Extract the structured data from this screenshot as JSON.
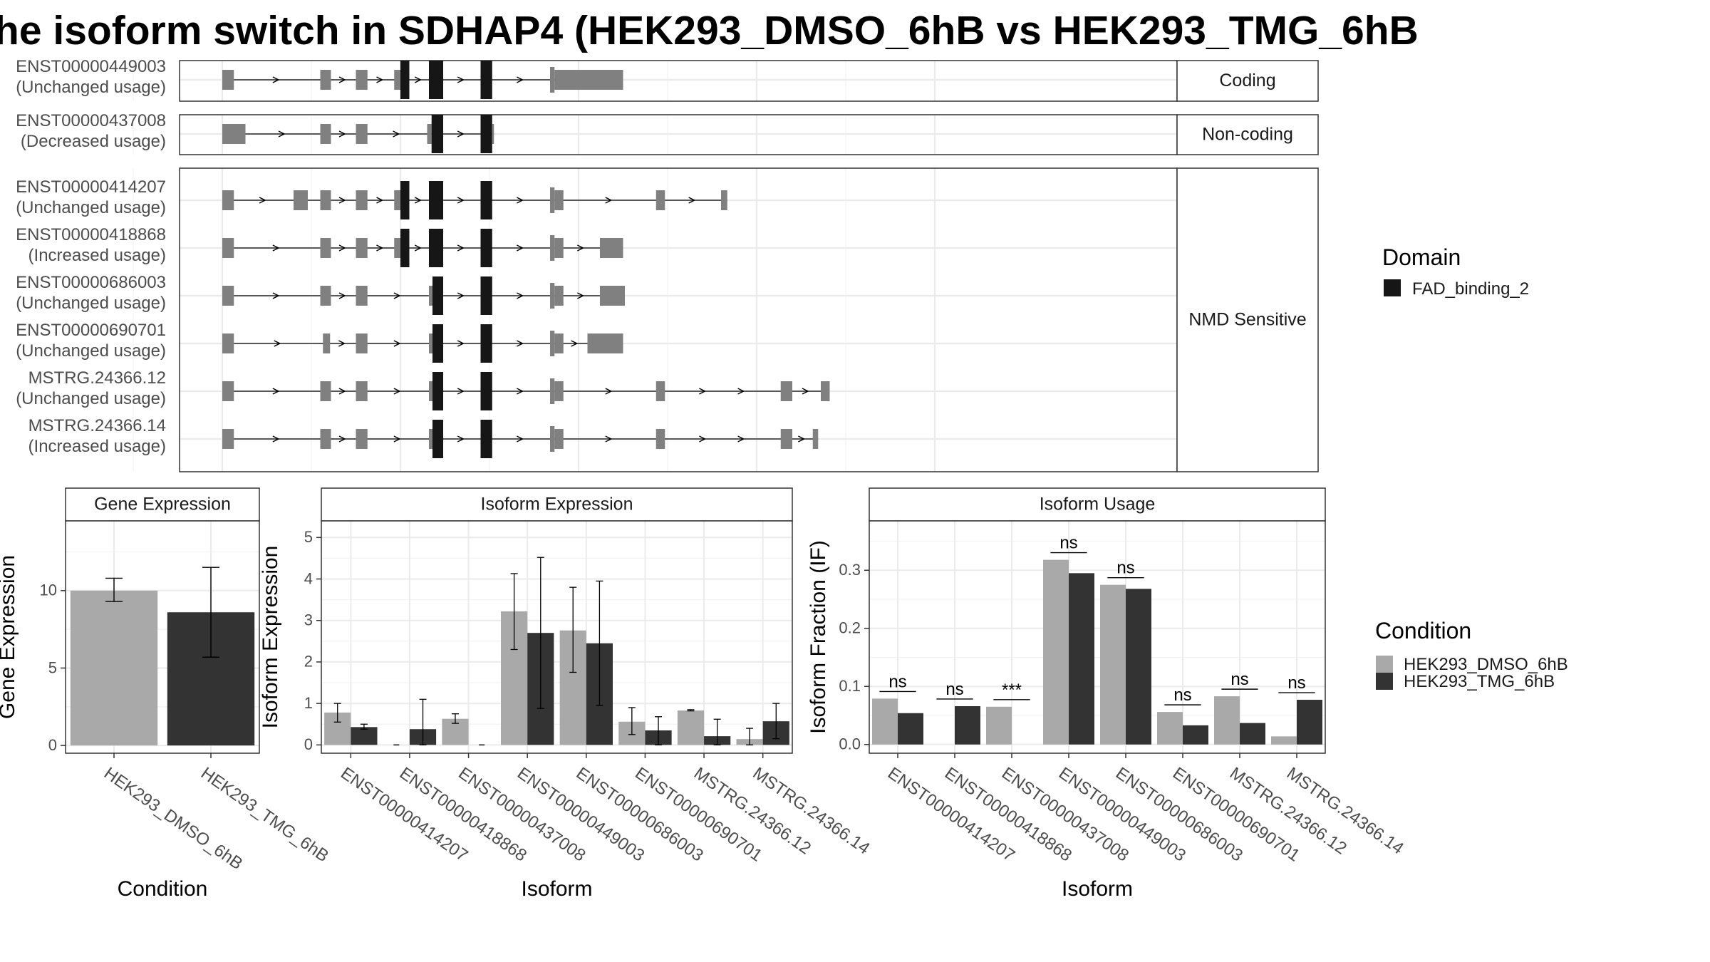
{
  "title": "he isoform switch in SDHAP4 (HEK293_DMSO_6hB vs HEK293_TMG_6hB",
  "colors": {
    "dmso": "#a9a9a9",
    "tmg": "#333333",
    "exon": "#808080",
    "domain": "#161616",
    "grid": "#ebebeb",
    "strip_bg": "#ffffff"
  },
  "structure": {
    "groups": [
      "Coding",
      "Non-coding",
      "NMD Sensitive"
    ],
    "transcripts": [
      {
        "id": "ENST00000449003",
        "label": "(Unchanged usage)",
        "group": "Coding"
      },
      {
        "id": "ENST00000437008",
        "label": "(Decreased usage)",
        "group": "Non-coding"
      },
      {
        "id": "ENST00000414207",
        "label": "(Unchanged usage)",
        "group": "NMD Sensitive"
      },
      {
        "id": "ENST00000418868",
        "label": "(Increased usage)",
        "group": "NMD Sensitive"
      },
      {
        "id": "ENST00000686003",
        "label": "(Unchanged usage)",
        "group": "NMD Sensitive"
      },
      {
        "id": "ENST00000690701",
        "label": "(Unchanged usage)",
        "group": "NMD Sensitive"
      },
      {
        "id": "MSTRG.24366.12",
        "label": "(Unchanged usage)",
        "group": "NMD Sensitive"
      },
      {
        "id": "MSTRG.24366.14",
        "label": "(Increased usage)",
        "group": "NMD Sensitive"
      }
    ],
    "domain_legend": {
      "title": "Domain",
      "items": [
        "FAD_binding_2"
      ]
    }
  },
  "condition_legend": {
    "title": "Condition",
    "items": [
      "HEK293_DMSO_6hB",
      "HEK293_TMG_6hB"
    ]
  },
  "chart_data": [
    {
      "type": "bar",
      "title": "Gene Expression",
      "xlabel": "Condition",
      "ylabel": "Gene Expression",
      "ylim": [
        -0.5,
        14.5
      ],
      "yticks": [
        0,
        5,
        10
      ],
      "categories": [
        "HEK293_DMSO_6hB",
        "HEK293_TMG_6hB"
      ],
      "values": [
        10.0,
        8.6
      ],
      "errors": [
        [
          9.3,
          10.8
        ],
        [
          5.7,
          11.5
        ]
      ]
    },
    {
      "type": "bar",
      "title": "Isoform Expression",
      "xlabel": "Isoform",
      "ylabel": "Isoform Expression",
      "ylim": [
        -0.2,
        5.4
      ],
      "yticks": [
        0,
        1,
        2,
        3,
        4,
        5
      ],
      "categories": [
        "ENST00000414207",
        "ENST00000418868",
        "ENST00000437008",
        "ENST00000449003",
        "ENST00000686003",
        "ENST00000690701",
        "MSTRG.24366.12",
        "MSTRG.24366.14"
      ],
      "series": [
        {
          "name": "HEK293_DMSO_6hB",
          "values": [
            0.78,
            0.0,
            0.63,
            3.22,
            2.76,
            0.56,
            0.83,
            0.14
          ],
          "errors": [
            [
              0.55,
              1.0
            ],
            [
              0,
              0
            ],
            [
              0.52,
              0.75
            ],
            [
              2.3,
              4.13
            ],
            [
              1.75,
              3.8
            ],
            [
              0.25,
              0.9
            ],
            [
              0.82,
              0.85
            ],
            [
              0.0,
              0.4
            ]
          ]
        },
        {
          "name": "HEK293_TMG_6hB",
          "values": [
            0.43,
            0.38,
            0.0,
            2.7,
            2.45,
            0.35,
            0.21,
            0.57
          ],
          "errors": [
            [
              0.38,
              0.5
            ],
            [
              0.0,
              1.1
            ],
            [
              0,
              0
            ],
            [
              0.88,
              4.52
            ],
            [
              0.95,
              3.95
            ],
            [
              0.0,
              0.68
            ],
            [
              0.0,
              0.62
            ],
            [
              0.15,
              1.0
            ]
          ]
        }
      ]
    },
    {
      "type": "bar",
      "title": "Isoform Usage",
      "xlabel": "Isoform",
      "ylabel": "Isoform Fraction (IF)",
      "ylim": [
        -0.015,
        0.385
      ],
      "yticks": [
        0.0,
        0.1,
        0.2,
        0.3
      ],
      "ytick_labels": [
        "0.0",
        "0.1",
        "0.2",
        "0.3"
      ],
      "categories": [
        "ENST00000414207",
        "ENST00000418868",
        "ENST00000437008",
        "ENST00000449003",
        "ENST00000686003",
        "ENST00000690701",
        "MSTRG.24366.12",
        "MSTRG.24366.14"
      ],
      "series": [
        {
          "name": "HEK293_DMSO_6hB",
          "values": [
            0.079,
            0.0,
            0.065,
            0.318,
            0.275,
            0.056,
            0.083,
            0.014
          ]
        },
        {
          "name": "HEK293_TMG_6hB",
          "values": [
            0.054,
            0.066,
            0.0,
            0.295,
            0.268,
            0.033,
            0.037,
            0.077
          ]
        }
      ],
      "significance": [
        "ns",
        "ns",
        "***",
        "ns",
        "ns",
        "ns",
        "ns",
        "ns"
      ]
    }
  ]
}
